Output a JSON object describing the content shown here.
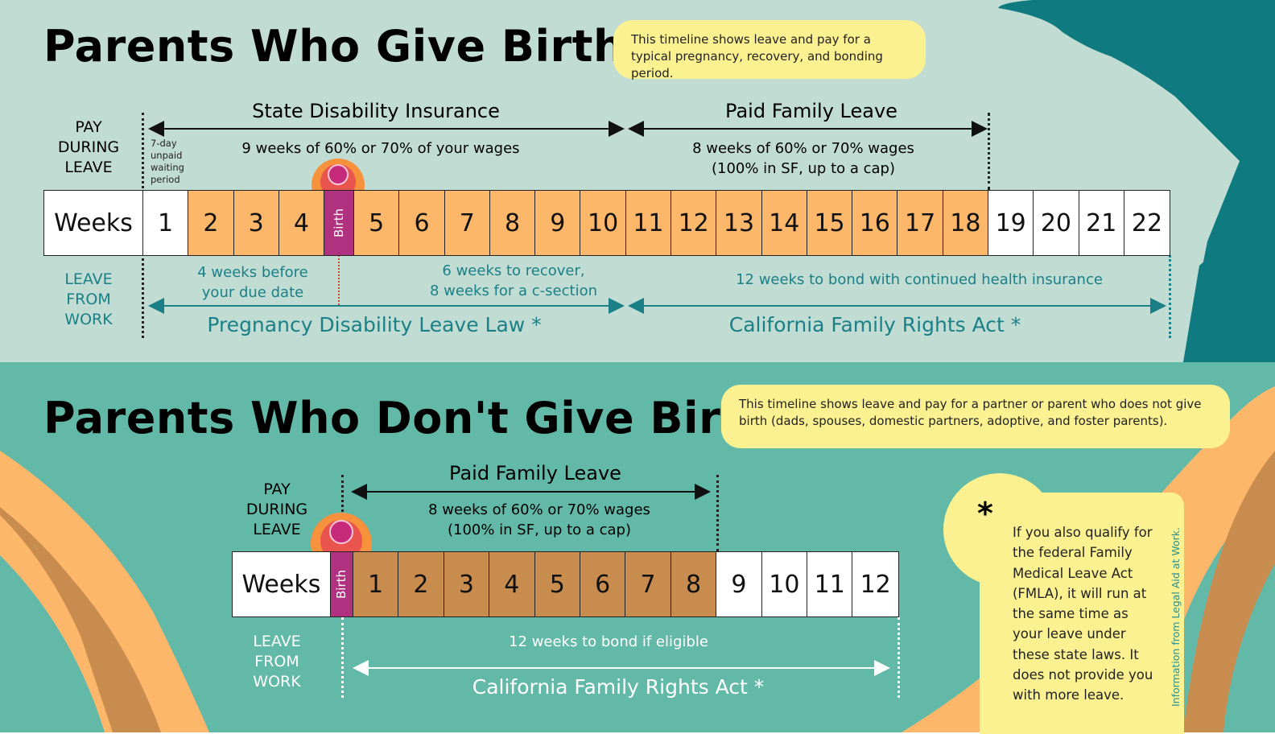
{
  "colors": {
    "paid": "#fdb76b",
    "paid_nonbirth": "#c98c4f",
    "birth": "#b0317f",
    "teal_text": "#1a7f86",
    "note": "#fbf190"
  },
  "birth_section": {
    "title": "Parents Who Give Birth",
    "note": "This timeline shows leave and pay for a typical pregnancy, recovery, and bonding period.",
    "pay_label": [
      "PAY",
      "DURING",
      "LEAVE"
    ],
    "leave_label": [
      "LEAVE",
      "FROM",
      "WORK"
    ],
    "waiting": [
      "7-day",
      "unpaid",
      "waiting",
      "period"
    ],
    "sdi": {
      "title": "State Disability Insurance",
      "desc": "9 weeks of 60% or 70% of your wages"
    },
    "pfl": {
      "title": "Paid Family Leave",
      "desc1": "8 weeks of 60% or 70% wages",
      "desc2": "(100% in SF, up to a cap)"
    },
    "weeks_label": "Weeks",
    "birth_label": "Birth",
    "weeks": [
      {
        "n": "1",
        "paid": false
      },
      {
        "n": "2",
        "paid": true
      },
      {
        "n": "3",
        "paid": true
      },
      {
        "n": "4",
        "paid": true
      },
      {
        "n": "Birth",
        "birth": true
      },
      {
        "n": "5",
        "paid": true
      },
      {
        "n": "6",
        "paid": true
      },
      {
        "n": "7",
        "paid": true
      },
      {
        "n": "8",
        "paid": true
      },
      {
        "n": "9",
        "paid": true
      },
      {
        "n": "10",
        "paid": true
      },
      {
        "n": "11",
        "paid": true
      },
      {
        "n": "12",
        "paid": true
      },
      {
        "n": "13",
        "paid": true
      },
      {
        "n": "14",
        "paid": true
      },
      {
        "n": "15",
        "paid": true
      },
      {
        "n": "16",
        "paid": true
      },
      {
        "n": "17",
        "paid": true
      },
      {
        "n": "18",
        "paid": true
      },
      {
        "n": "19",
        "paid": false
      },
      {
        "n": "20",
        "paid": false
      },
      {
        "n": "21",
        "paid": false
      },
      {
        "n": "22",
        "paid": false
      }
    ],
    "before": [
      "4 weeks before",
      "your due date"
    ],
    "recover": [
      "6 weeks to recover,",
      "8 weeks for a c-section"
    ],
    "bond": "12 weeks to bond with continued health insurance",
    "pdl": "Pregnancy Disability Leave Law *",
    "cfra": "California Family Rights Act *"
  },
  "nonbirth_section": {
    "title": "Parents Who Don't Give Birth",
    "note": "This timeline shows leave and pay for a partner or parent who does not give birth (dads, spouses, domestic partners, adoptive, and foster parents).",
    "pay_label": [
      "PAY",
      "DURING",
      "LEAVE"
    ],
    "leave_label": [
      "LEAVE",
      "FROM",
      "WORK"
    ],
    "pfl": {
      "title": "Paid Family Leave",
      "desc1": "8 weeks of 60% or 70% wages",
      "desc2": "(100% in SF, up to a cap)"
    },
    "weeks_label": "Weeks",
    "weeks": [
      {
        "n": "Birth",
        "birth": true
      },
      {
        "n": "1",
        "paid": true
      },
      {
        "n": "2",
        "paid": true
      },
      {
        "n": "3",
        "paid": true
      },
      {
        "n": "4",
        "paid": true
      },
      {
        "n": "5",
        "paid": true
      },
      {
        "n": "6",
        "paid": true
      },
      {
        "n": "7",
        "paid": true
      },
      {
        "n": "8",
        "paid": true
      },
      {
        "n": "9",
        "paid": false
      },
      {
        "n": "10",
        "paid": false
      },
      {
        "n": "11",
        "paid": false
      },
      {
        "n": "12",
        "paid": false
      }
    ],
    "bond": "12 weeks to bond if eligible",
    "cfra": "California Family Rights Act *"
  },
  "footnote": {
    "mark": "*",
    "lines": [
      "If you also qualify for",
      "the federal Family",
      "Medical Leave Act",
      "(FMLA), it will run at",
      "the same time as",
      "your leave under",
      "these state laws. It",
      "does not provide you",
      "with more leave."
    ],
    "credit": "Information from Legal Aid at Work."
  }
}
